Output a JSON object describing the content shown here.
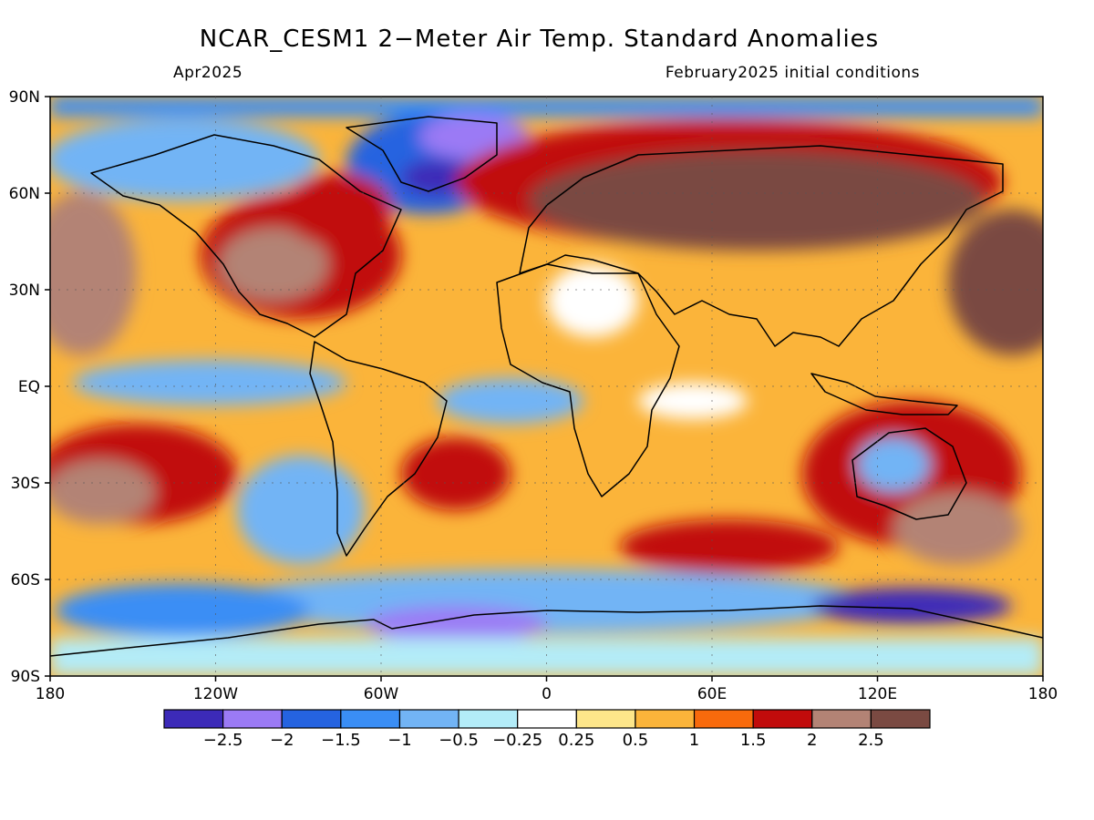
{
  "title": "NCAR_CESM1 2−Meter Air Temp. Standard Anomalies",
  "subtitle_left": "Apr2025",
  "subtitle_right": "February2025 initial conditions",
  "axes": {
    "y_labels": [
      "90N",
      "60N",
      "30N",
      "EQ",
      "30S",
      "60S",
      "90S"
    ],
    "x_labels": [
      "180",
      "120W",
      "60W",
      "0",
      "60E",
      "120E",
      "180"
    ],
    "lat_values": [
      90,
      60,
      30,
      0,
      -30,
      -60,
      -90
    ],
    "lon_values": [
      -180,
      -120,
      -60,
      0,
      60,
      120,
      180
    ]
  },
  "colorbar": {
    "colors": [
      "#3c2ab8",
      "#9b7af5",
      "#2563e0",
      "#3a8ef5",
      "#72b4f5",
      "#b3ecf8",
      "#ffffff",
      "#fde68a",
      "#fbb43a",
      "#f86a0c",
      "#c10b0b",
      "#b38375",
      "#7a4a42"
    ],
    "labels": [
      "−2.5",
      "−2",
      "−1.5",
      "−1",
      "−0.5",
      "−0.25",
      "0.25",
      "0.5",
      "1",
      "1.5",
      "2",
      "2.5"
    ]
  }
}
